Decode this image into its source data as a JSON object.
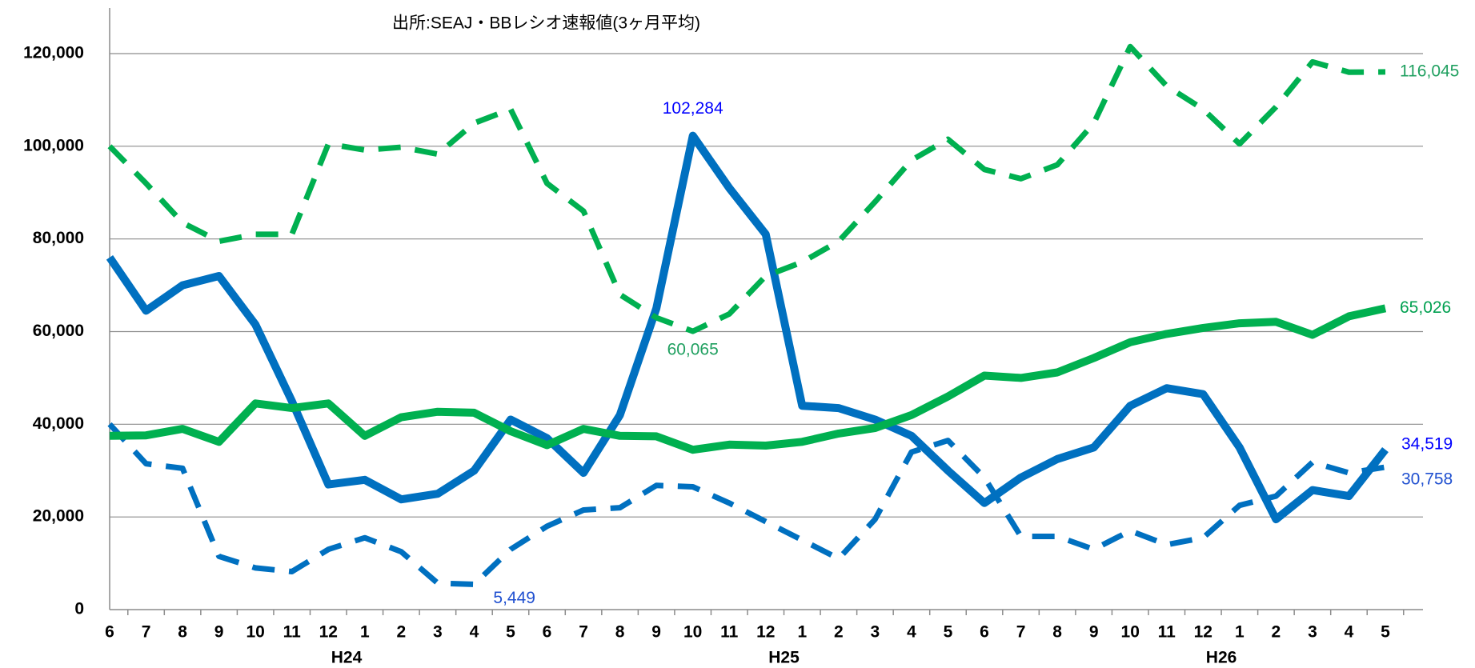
{
  "chart_data": {
    "type": "line",
    "subtitle": "出所:SEAJ・BBレシオ速報値(3ヶ月平均)",
    "categories": [
      "6",
      "7",
      "8",
      "9",
      "10",
      "11",
      "12",
      "1",
      "2",
      "3",
      "4",
      "5",
      "6",
      "7",
      "8",
      "9",
      "10",
      "11",
      "12",
      "1",
      "2",
      "3",
      "4",
      "5",
      "6",
      "7",
      "8",
      "9",
      "10",
      "11",
      "12",
      "1",
      "2",
      "3",
      "4",
      "5"
    ],
    "category_groups": [
      null,
      null,
      null,
      null,
      null,
      null,
      null,
      "H24",
      null,
      null,
      null,
      null,
      null,
      null,
      null,
      null,
      null,
      null,
      null,
      "H25",
      null,
      null,
      null,
      null,
      null,
      null,
      null,
      null,
      null,
      null,
      null,
      "H26",
      null,
      null,
      null,
      null
    ],
    "ylim": [
      0,
      120000
    ],
    "yticks": [
      0,
      {
        "value": 20000,
        "label": "20,000"
      },
      {
        "value": 40000,
        "label": "40,000"
      },
      {
        "value": 60000,
        "label": "60,000"
      },
      {
        "value": 80000,
        "label": "80,000"
      },
      {
        "value": 100000,
        "label": "100,000"
      },
      {
        "value": 120000,
        "label": "120,000"
      }
    ],
    "grid": true,
    "series": [
      {
        "color": "#0070c0",
        "label_color": "#0000ff",
        "dash": false,
        "values": [
          76000,
          64500,
          70000,
          72000,
          61500,
          45000,
          27000,
          28000,
          23800,
          25000,
          30000,
          41000,
          37000,
          29500,
          42000,
          65000,
          102284,
          91000,
          81000,
          44000,
          43500,
          41000,
          37500,
          30000,
          23000,
          28500,
          32500,
          35000,
          44000,
          47800,
          46500,
          35000,
          19500,
          25800,
          24500,
          34519
        ],
        "value_labels": [
          null,
          null,
          null,
          null,
          null,
          null,
          null,
          null,
          null,
          null,
          null,
          null,
          null,
          null,
          null,
          null,
          "102,284",
          null,
          null,
          null,
          null,
          null,
          null,
          null,
          null,
          null,
          null,
          null,
          null,
          null,
          null,
          null,
          null,
          null,
          null,
          "34,519"
        ]
      },
      {
        "color": "#0070c0",
        "label_color": "#2050d0",
        "dash": true,
        "values": [
          40000,
          31500,
          30500,
          11500,
          9000,
          8200,
          13000,
          15500,
          12500,
          5700,
          5449,
          13000,
          18000,
          21500,
          22000,
          26800,
          26500,
          23000,
          19000,
          15000,
          11000,
          19500,
          34000,
          36500,
          28500,
          15800,
          15800,
          13000,
          17000,
          14000,
          15500,
          22500,
          24500,
          31800,
          29500,
          30758
        ],
        "value_labels": [
          null,
          null,
          null,
          null,
          null,
          null,
          null,
          null,
          null,
          null,
          "5,449",
          null,
          null,
          null,
          null,
          null,
          null,
          null,
          null,
          null,
          null,
          null,
          null,
          null,
          null,
          null,
          null,
          null,
          null,
          null,
          null,
          null,
          null,
          null,
          null,
          "30,758"
        ]
      },
      {
        "color": "#00b050",
        "label_color": "#00a050",
        "dash": false,
        "values": [
          37500,
          37600,
          39000,
          36200,
          44500,
          43500,
          44500,
          37500,
          41500,
          42700,
          42500,
          38500,
          35500,
          39000,
          37500,
          37400,
          34500,
          35600,
          35400,
          36200,
          38000,
          39200,
          42000,
          46000,
          50500,
          50000,
          51200,
          54300,
          57700,
          59500,
          60800,
          61800,
          62100,
          59300,
          63300,
          65026
        ],
        "value_labels": [
          null,
          null,
          null,
          null,
          null,
          null,
          null,
          null,
          null,
          null,
          null,
          null,
          null,
          null,
          null,
          null,
          null,
          null,
          null,
          null,
          null,
          null,
          null,
          null,
          null,
          null,
          null,
          null,
          null,
          null,
          null,
          null,
          null,
          null,
          null,
          "65,026"
        ]
      },
      {
        "color": "#00b050",
        "label_color": "#20a060",
        "dash": true,
        "values": [
          100000,
          92000,
          83500,
          79500,
          81000,
          81000,
          100500,
          99200,
          99800,
          98300,
          105000,
          108000,
          92000,
          86000,
          68000,
          63000,
          60065,
          63800,
          72000,
          75000,
          79500,
          88000,
          97000,
          101500,
          95000,
          93000,
          96000,
          105000,
          121500,
          113000,
          108000,
          100500,
          108500,
          118200,
          116000,
          116045
        ],
        "value_labels": [
          null,
          null,
          null,
          null,
          null,
          null,
          null,
          null,
          null,
          null,
          null,
          null,
          null,
          null,
          null,
          null,
          "60,065",
          null,
          null,
          null,
          null,
          null,
          null,
          null,
          null,
          null,
          null,
          null,
          null,
          null,
          null,
          null,
          null,
          null,
          null,
          "116,045"
        ]
      }
    ]
  }
}
